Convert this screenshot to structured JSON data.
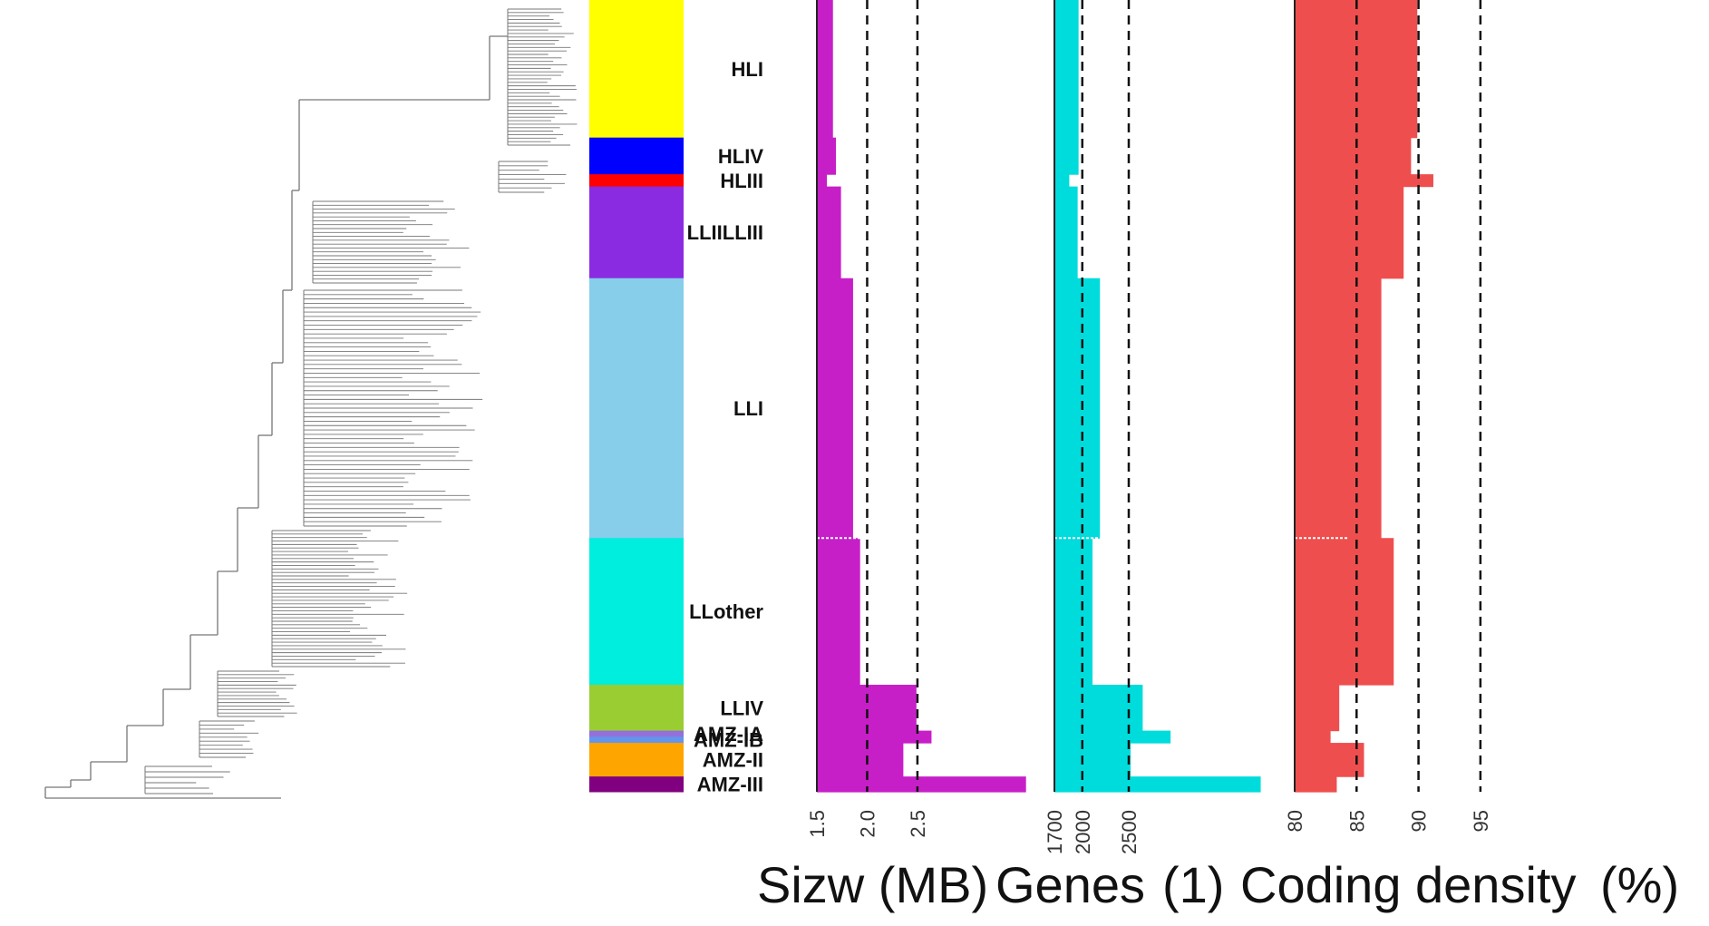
{
  "chart_data": {
    "type": "bar",
    "orientation": "horizontal",
    "categories": [
      "HLI",
      "HLIV",
      "HLIII",
      "LLIILLIII",
      "LLI",
      "LLother",
      "LLIV",
      "AMZ-IA",
      "AMZ-IB",
      "AMZ-II",
      "AMZ-III"
    ],
    "category_colors": [
      "#ffff00",
      "#0000ff",
      "#ff0000",
      "#8a2be2",
      "#87ceeb",
      "#00eedd",
      "#9acd32",
      "#9370db",
      "#6495ed",
      "#ffa500",
      "#800080"
    ],
    "category_weights": [
      45,
      12,
      4,
      30,
      85,
      48,
      15,
      2,
      2,
      11,
      5
    ],
    "panels": [
      {
        "xlabel": "Sizw (MB)",
        "color": "#c71fc8",
        "xlim": [
          1.5,
          3.7
        ],
        "ticks": [
          "1.5",
          "2.0",
          "2.5"
        ],
        "tick_values": [
          1.5,
          2.0,
          2.5
        ],
        "reference_lines": [
          2.0,
          2.5
        ],
        "values": [
          1.66,
          1.69,
          1.6,
          1.74,
          1.86,
          1.93,
          2.49,
          2.64,
          2.64,
          2.36,
          3.58
        ]
      },
      {
        "xlabel": "Genes",
        "unit": "(1)",
        "color": "#00dcdc",
        "xlim": [
          1700,
          4100
        ],
        "ticks": [
          "1700",
          "2000",
          "2500"
        ],
        "tick_values": [
          1700,
          2000,
          2500
        ],
        "reference_lines": [
          2000,
          2500
        ],
        "values": [
          1960,
          1960,
          1860,
          1950,
          2190,
          2110,
          2650,
          2950,
          2950,
          2520,
          3920
        ]
      },
      {
        "xlabel": "Coding density",
        "unit": "(%)",
        "color": "#ef4e4e",
        "xlim": [
          80,
          100.5
        ],
        "ticks": [
          "80",
          "85",
          "90",
          "95"
        ],
        "tick_values": [
          80,
          85,
          90,
          95
        ],
        "reference_lines": [
          85,
          90,
          95
        ],
        "values": [
          89.9,
          89.4,
          91.2,
          88.8,
          87.0,
          88.0,
          83.6,
          82.9,
          82.9,
          85.6,
          83.4
        ]
      }
    ],
    "grid": false,
    "legend": "none"
  }
}
